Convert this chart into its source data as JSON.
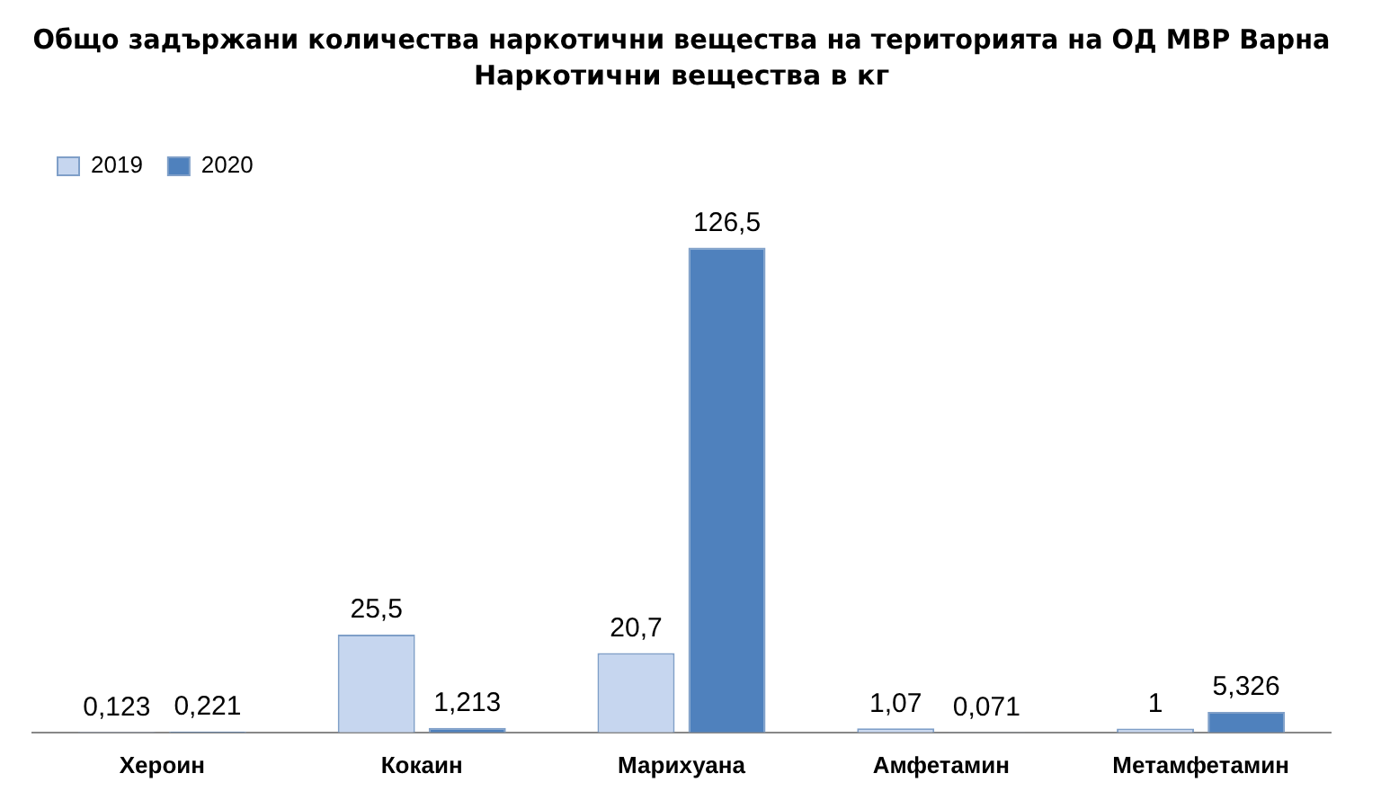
{
  "chart_data": {
    "type": "bar",
    "title": "Общо задържани количества наркотични вещества на територията на ОД МВР Варна",
    "subtitle": "Наркотични вещества в кг",
    "categories": [
      "Хероин",
      "Кокаин",
      "Марихуана",
      "Амфетамин",
      "Метамфетамин"
    ],
    "series": [
      {
        "name": "2019",
        "color": "#c6d6ef",
        "values": [
          0.123,
          25.5,
          20.7,
          1.07,
          1
        ],
        "value_labels": [
          "0,123",
          "25,5",
          "20,7",
          "1,07",
          "1"
        ]
      },
      {
        "name": "2020",
        "color": "#4f81bd",
        "values": [
          0.221,
          1.213,
          126.5,
          0.071,
          5.326
        ],
        "value_labels": [
          "0,221",
          "1,213",
          "126,5",
          "0,071",
          "5,326"
        ]
      }
    ],
    "legend": "top left"
  }
}
